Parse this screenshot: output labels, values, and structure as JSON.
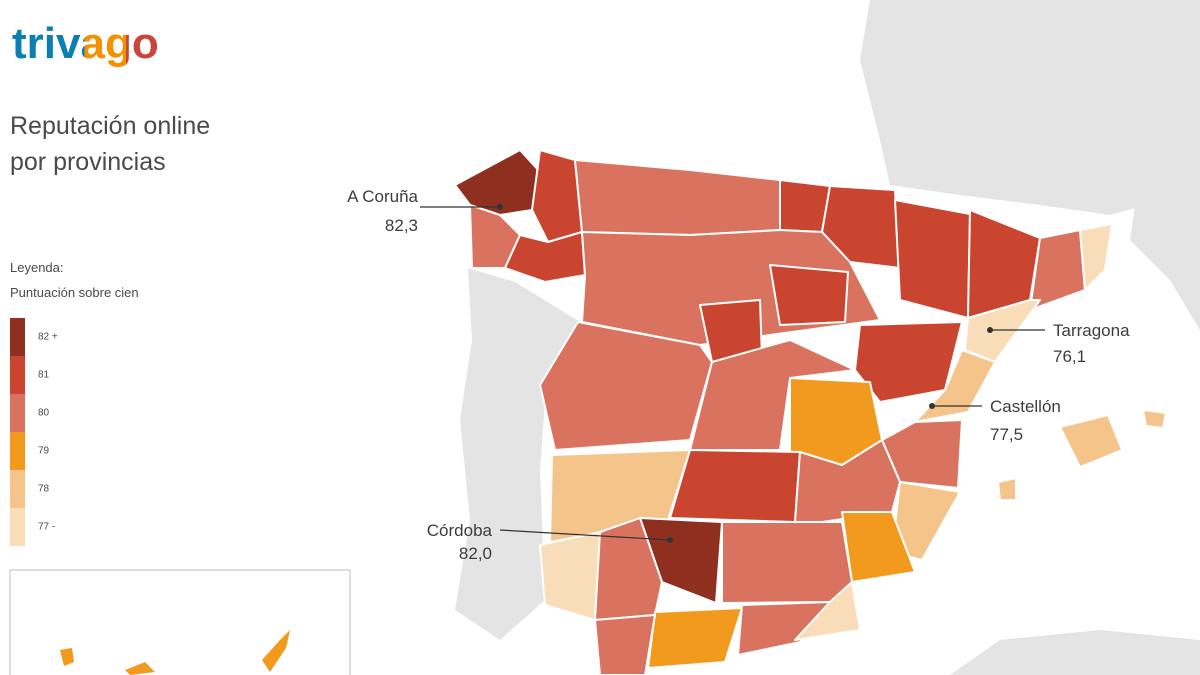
{
  "logo": "trivago",
  "title": [
    "Reputación online",
    "por provincias"
  ],
  "legend": {
    "heading": "Leyenda:",
    "subheading": "Puntuación sobre cien",
    "items": [
      {
        "label": "82 +",
        "color": "#8e2f1f"
      },
      {
        "label": "81",
        "color": "#c9452f"
      },
      {
        "label": "80",
        "color": "#d9735f"
      },
      {
        "label": "79",
        "color": "#f29a1d"
      },
      {
        "label": "78",
        "color": "#f5c48a"
      },
      {
        "label": "77 -",
        "color": "#f9dcb8"
      }
    ]
  },
  "callouts": [
    {
      "name": "A Coruña",
      "score": "82,3"
    },
    {
      "name": "Tarragona",
      "score": "76,1"
    },
    {
      "name": "Castellón",
      "score": "77,5"
    },
    {
      "name": "Córdoba",
      "score": "82,0"
    }
  ]
}
